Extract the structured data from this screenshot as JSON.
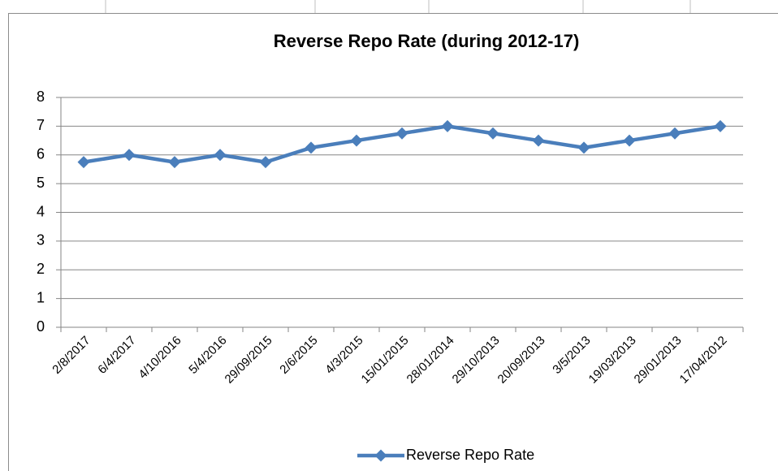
{
  "chart_data": {
    "type": "line",
    "title": "Reverse Repo Rate (during 2012-17)",
    "categories": [
      "2/8/2017",
      "6/4/2017",
      "4/10/2016",
      "5/4/2016",
      "29/09/2015",
      "2/6/2015",
      "4/3/2015",
      "15/01/2015",
      "28/01/2014",
      "29/10/2013",
      "20/09/2013",
      "3/5/2013",
      "19/03/2013",
      "29/01/2013",
      "17/04/2012"
    ],
    "series": [
      {
        "name": "Reverse Repo Rate",
        "color": "#4a7ebb",
        "values": [
          5.75,
          6,
          5.75,
          6,
          5.75,
          6.25,
          6.5,
          6.75,
          7,
          6.75,
          6.5,
          6.25,
          6.5,
          6.75,
          7
        ]
      }
    ],
    "ylim": [
      0,
      8
    ],
    "yticks": [
      0,
      1,
      2,
      3,
      4,
      5,
      6,
      7,
      8
    ],
    "grid": true,
    "legend": "bottom"
  }
}
